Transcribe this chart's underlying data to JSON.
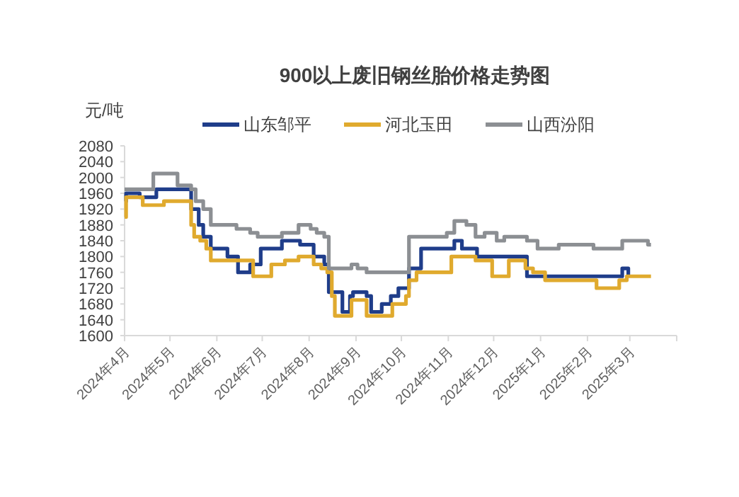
{
  "chart_data": {
    "type": "step",
    "title": "900以上废旧钢丝胎价格走势图",
    "ylabel": "元/吨",
    "xlim": [
      "2024-04-01",
      "2025-04-01"
    ],
    "xticks": [
      {
        "value": "2024-04-01",
        "label": "2024年4月"
      },
      {
        "value": "2024-05-01",
        "label": "2024年5月"
      },
      {
        "value": "2024-06-01",
        "label": "2024年6月"
      },
      {
        "value": "2024-07-01",
        "label": "2024年7月"
      },
      {
        "value": "2024-08-01",
        "label": "2024年8月"
      },
      {
        "value": "2024-09-01",
        "label": "2024年9月"
      },
      {
        "value": "2024-10-01",
        "label": "2024年10月"
      },
      {
        "value": "2024-11-01",
        "label": "2024年11月"
      },
      {
        "value": "2024-12-01",
        "label": "2024年12月"
      },
      {
        "value": "2025-01-01",
        "label": "2025年1月"
      },
      {
        "value": "2025-02-01",
        "label": "2025年2月"
      },
      {
        "value": "2025-03-01",
        "label": "2025年3月"
      },
      {
        "value": "2025-04-01",
        "label": null
      }
    ],
    "ylim": [
      1600,
      2080
    ],
    "yticks": [
      1600,
      1640,
      1680,
      1720,
      1760,
      1800,
      1840,
      1880,
      1920,
      1960,
      2000,
      2040,
      2080
    ],
    "legend": "top",
    "series": [
      {
        "name": "山东邹平",
        "color": "#1f3d8a",
        "x": [
          "2024-04-01",
          "2024-04-02",
          "2024-04-11",
          "2024-04-22",
          "2024-05-15",
          "2024-05-20",
          "2024-05-23",
          "2024-05-28",
          "2024-06-08",
          "2024-06-15",
          "2024-06-23",
          "2024-06-30",
          "2024-07-14",
          "2024-07-26",
          "2024-08-04",
          "2024-08-11",
          "2024-08-14",
          "2024-08-23",
          "2024-08-28",
          "2024-08-30",
          "2024-09-08",
          "2024-09-11",
          "2024-09-18",
          "2024-09-24",
          "2024-09-29",
          "2024-10-06",
          "2024-10-14",
          "2024-11-05",
          "2024-11-10",
          "2024-11-20",
          "2024-12-23",
          "2025-02-24",
          "2025-02-28"
        ],
        "values": [
          1940,
          1960,
          1950,
          1970,
          1920,
          1880,
          1850,
          1820,
          1800,
          1760,
          1780,
          1820,
          1840,
          1830,
          1800,
          1780,
          1710,
          1660,
          1700,
          1710,
          1700,
          1660,
          1680,
          1700,
          1720,
          1770,
          1820,
          1840,
          1820,
          1800,
          1750,
          1770,
          1750
        ]
      },
      {
        "name": "河北玉田",
        "color": "#e0aa2e",
        "x": [
          "2024-04-01",
          "2024-04-02",
          "2024-04-13",
          "2024-04-27",
          "2024-05-15",
          "2024-05-17",
          "2024-05-21",
          "2024-05-25",
          "2024-05-28",
          "2024-06-25",
          "2024-07-07",
          "2024-07-16",
          "2024-07-25",
          "2024-08-04",
          "2024-08-09",
          "2024-08-13",
          "2024-08-16",
          "2024-08-18",
          "2024-08-29",
          "2024-09-08",
          "2024-09-25",
          "2024-10-04",
          "2024-10-06",
          "2024-10-11",
          "2024-11-03",
          "2024-11-19",
          "2024-11-30",
          "2024-12-11",
          "2024-12-22",
          "2024-12-27",
          "2025-01-04",
          "2025-02-07",
          "2025-02-22",
          "2025-02-27",
          "2025-03-15"
        ],
        "values": [
          1900,
          1950,
          1930,
          1940,
          1880,
          1850,
          1840,
          1820,
          1790,
          1750,
          1780,
          1790,
          1800,
          1780,
          1770,
          1760,
          1700,
          1650,
          1690,
          1650,
          1680,
          1700,
          1740,
          1760,
          1800,
          1790,
          1750,
          1790,
          1770,
          1760,
          1740,
          1720,
          1740,
          1750,
          1750
        ]
      },
      {
        "name": "山西汾阳",
        "color": "#8c8f93",
        "x": [
          "2024-04-01",
          "2024-04-20",
          "2024-05-06",
          "2024-05-15",
          "2024-05-18",
          "2024-05-23",
          "2024-05-28",
          "2024-06-14",
          "2024-06-23",
          "2024-06-28",
          "2024-07-14",
          "2024-07-25",
          "2024-08-02",
          "2024-08-06",
          "2024-08-11",
          "2024-08-14",
          "2024-08-29",
          "2024-09-02",
          "2024-09-08",
          "2024-10-06",
          "2024-10-31",
          "2024-11-05",
          "2024-11-13",
          "2024-11-19",
          "2024-11-25",
          "2024-12-03",
          "2024-12-08",
          "2024-12-23",
          "2024-12-30",
          "2025-01-13",
          "2025-02-05",
          "2025-02-24",
          "2025-03-13",
          "2025-03-15"
        ],
        "values": [
          1970,
          2010,
          1980,
          1970,
          1940,
          1920,
          1880,
          1870,
          1860,
          1850,
          1860,
          1880,
          1870,
          1860,
          1850,
          1770,
          1780,
          1770,
          1760,
          1850,
          1860,
          1890,
          1880,
          1850,
          1860,
          1840,
          1850,
          1840,
          1820,
          1830,
          1820,
          1840,
          1830,
          1830
        ]
      }
    ]
  }
}
